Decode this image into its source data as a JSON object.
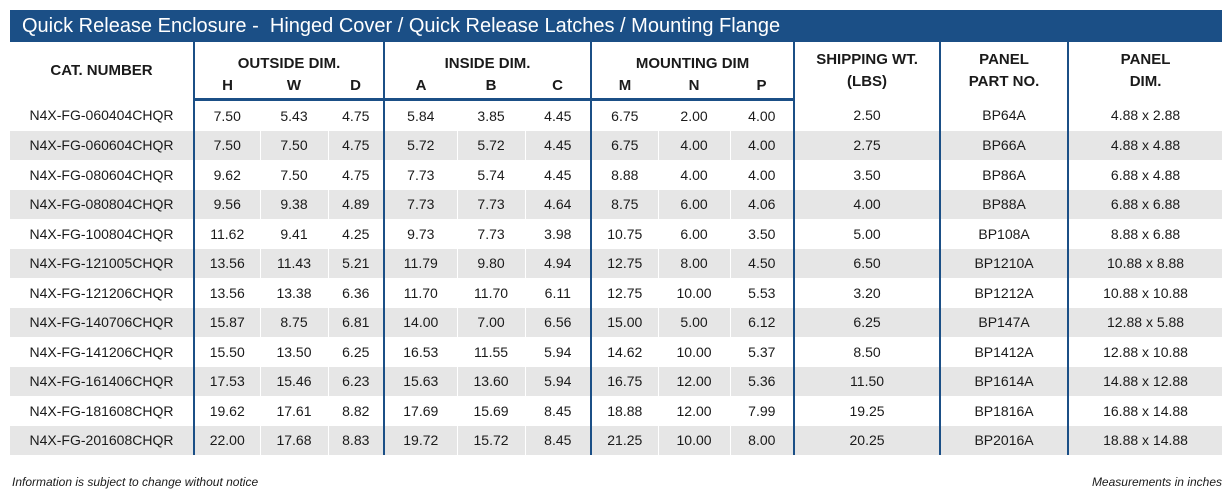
{
  "title": "Quick Release Enclosure -  Hinged Cover / Quick Release Latches / Mounting Flange",
  "headers": {
    "cat": "CAT. NUMBER",
    "outside": "OUTSIDE DIM.",
    "inside": "INSIDE DIM.",
    "mounting": "MOUNTING DIM",
    "ship1": "SHIPPING WT.",
    "ship2": "(LBS)",
    "part1": "PANEL",
    "part2": "PART NO.",
    "dim1": "PANEL",
    "dim2": "DIM.",
    "sub": [
      "H",
      "W",
      "D",
      "A",
      "B",
      "C",
      "M",
      "N",
      "P"
    ]
  },
  "rows": [
    [
      "N4X-FG-060404CHQR",
      "7.50",
      "5.43",
      "4.75",
      "5.84",
      "3.85",
      "4.45",
      "6.75",
      "2.00",
      "4.00",
      "2.50",
      "BP64A",
      "4.88 x 2.88"
    ],
    [
      "N4X-FG-060604CHQR",
      "7.50",
      "7.50",
      "4.75",
      "5.72",
      "5.72",
      "4.45",
      "6.75",
      "4.00",
      "4.00",
      "2.75",
      "BP66A",
      "4.88 x 4.88"
    ],
    [
      "N4X-FG-080604CHQR",
      "9.62",
      "7.50",
      "4.75",
      "7.73",
      "5.74",
      "4.45",
      "8.88",
      "4.00",
      "4.00",
      "3.50",
      "BP86A",
      "6.88 x 4.88"
    ],
    [
      "N4X-FG-080804CHQR",
      "9.56",
      "9.38",
      "4.89",
      "7.73",
      "7.73",
      "4.64",
      "8.75",
      "6.00",
      "4.06",
      "4.00",
      "BP88A",
      "6.88 x 6.88"
    ],
    [
      "N4X-FG-100804CHQR",
      "11.62",
      "9.41",
      "4.25",
      "9.73",
      "7.73",
      "3.98",
      "10.75",
      "6.00",
      "3.50",
      "5.00",
      "BP108A",
      "8.88 x 6.88"
    ],
    [
      "N4X-FG-121005CHQR",
      "13.56",
      "11.43",
      "5.21",
      "11.79",
      "9.80",
      "4.94",
      "12.75",
      "8.00",
      "4.50",
      "6.50",
      "BP1210A",
      "10.88 x 8.88"
    ],
    [
      "N4X-FG-121206CHQR",
      "13.56",
      "13.38",
      "6.36",
      "11.70",
      "11.70",
      "6.11",
      "12.75",
      "10.00",
      "5.53",
      "3.20",
      "BP1212A",
      "10.88 x 10.88"
    ],
    [
      "N4X-FG-140706CHQR",
      "15.87",
      "8.75",
      "6.81",
      "14.00",
      "7.00",
      "6.56",
      "15.00",
      "5.00",
      "6.12",
      "6.25",
      "BP147A",
      "12.88 x 5.88"
    ],
    [
      "N4X-FG-141206CHQR",
      "15.50",
      "13.50",
      "6.25",
      "16.53",
      "11.55",
      "5.94",
      "14.62",
      "10.00",
      "5.37",
      "8.50",
      "BP1412A",
      "12.88 x 10.88"
    ],
    [
      "N4X-FG-161406CHQR",
      "17.53",
      "15.46",
      "6.23",
      "15.63",
      "13.60",
      "5.94",
      "16.75",
      "12.00",
      "5.36",
      "11.50",
      "BP1614A",
      "14.88 x 12.88"
    ],
    [
      "N4X-FG-181608CHQR",
      "19.62",
      "17.61",
      "8.82",
      "17.69",
      "15.69",
      "8.45",
      "18.88",
      "12.00",
      "7.99",
      "19.25",
      "BP1816A",
      "16.88 x 14.88"
    ],
    [
      "N4X-FG-201608CHQR",
      "22.00",
      "17.68",
      "8.83",
      "19.72",
      "15.72",
      "8.45",
      "21.25",
      "10.00",
      "8.00",
      "20.25",
      "BP2016A",
      "18.88 x 14.88"
    ]
  ],
  "footer": {
    "left": "Information is subject to change without notice",
    "right": "Measurements in inches"
  },
  "colors": {
    "accent": "#1b4f86",
    "stripe": "#e6e6e6"
  }
}
